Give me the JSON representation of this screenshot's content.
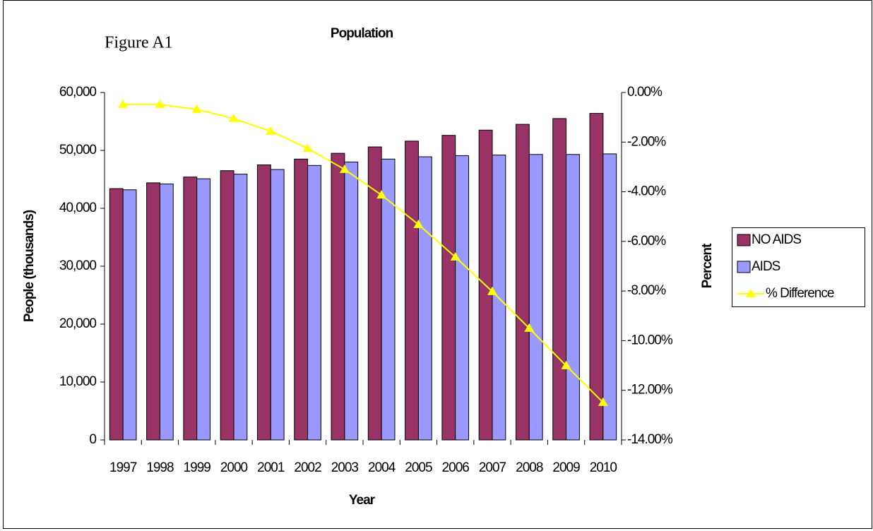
{
  "chart_data": {
    "type": "bar",
    "title": "Population",
    "annotation": "Figure A1",
    "x_label": "Year",
    "y_label": "People (thousands)",
    "y2_label": "Percent",
    "categories": [
      "1997",
      "1998",
      "1999",
      "2000",
      "2001",
      "2002",
      "2003",
      "2004",
      "2005",
      "2006",
      "2007",
      "2008",
      "2009",
      "2010"
    ],
    "series": [
      {
        "name": "NO AIDS",
        "color": "#993366",
        "values": [
          43400,
          44400,
          45400,
          46500,
          47500,
          48500,
          49500,
          50600,
          51600,
          52600,
          53500,
          54500,
          55500,
          56400
        ]
      },
      {
        "name": "AIDS",
        "color": "#9999ff",
        "values": [
          43200,
          44200,
          45100,
          45900,
          46700,
          47400,
          48000,
          48500,
          48900,
          49100,
          49200,
          49300,
          49300,
          49400
        ]
      },
      {
        "name": "% Difference",
        "color": "#ffff00",
        "type": "line",
        "axis": "y2",
        "values": [
          -0.48,
          -0.48,
          -0.68,
          -1.05,
          -1.56,
          -2.25,
          -3.1,
          -4.13,
          -5.32,
          -6.63,
          -8.02,
          -9.5,
          -11.01,
          -12.49
        ]
      }
    ],
    "ylim": [
      0,
      60000
    ],
    "yticks": [
      0,
      {
        "value": 10000,
        "label": "10,000"
      },
      {
        "value": 20000,
        "label": "20,000"
      },
      {
        "value": 30000,
        "label": "30,000"
      },
      {
        "value": 40000,
        "label": "40,000"
      },
      {
        "value": 50000,
        "label": "50,000"
      },
      {
        "value": 60000,
        "label": "60,000"
      }
    ],
    "y2lim": [
      -14,
      0
    ],
    "y2ticks": [
      {
        "value": -14,
        "label": "-14.00%"
      },
      {
        "value": -12,
        "label": "-12.00%"
      },
      {
        "value": -10,
        "label": "-10.00%"
      },
      {
        "value": -8,
        "label": "-8.00%"
      },
      {
        "value": -6,
        "label": "-6.00%"
      },
      {
        "value": -4,
        "label": "-4.00%"
      },
      {
        "value": -2,
        "label": "-2.00%"
      },
      {
        "value": 0,
        "label": "0.00%"
      }
    ],
    "legend": "right"
  }
}
